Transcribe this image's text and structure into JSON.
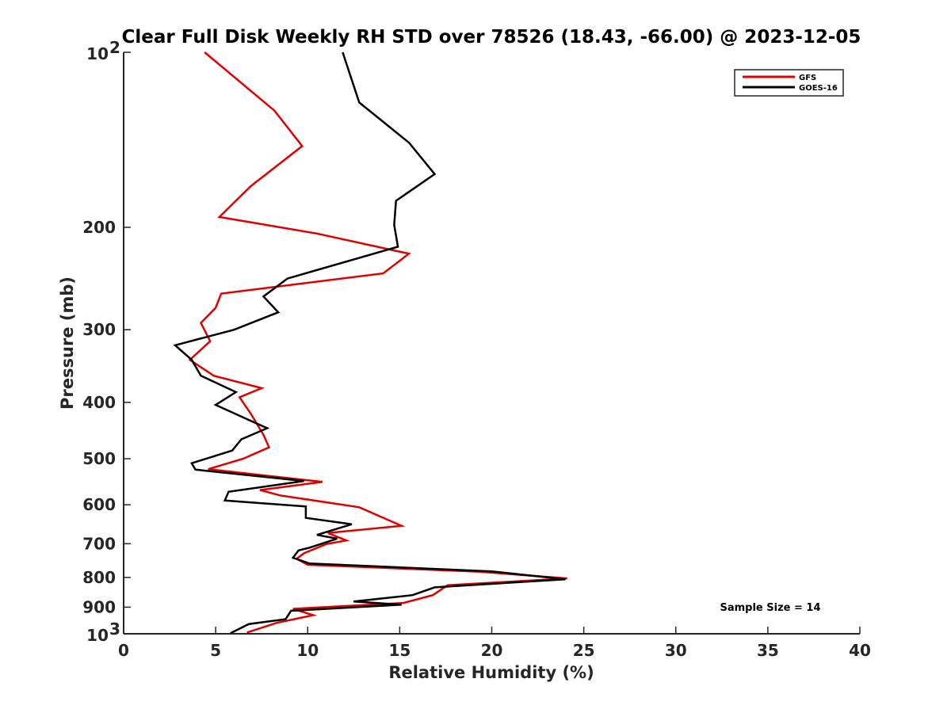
{
  "chart_data": {
    "type": "line",
    "title": "Clear Full Disk Weekly RH STD over 78526 (18.43, -66.00) @ 2023-12-05",
    "xlabel": "Relative Humidity (%)",
    "ylabel": "Pressure (mb)",
    "xlim": [
      0,
      40
    ],
    "ylim": [
      100,
      1000
    ],
    "y_scale": "log",
    "y_reversed": true,
    "x_ticks": [
      "0",
      "5",
      "10",
      "15",
      "20",
      "25",
      "30",
      "35",
      "40"
    ],
    "y_ticks": [
      {
        "value": 100,
        "base": "10",
        "exp": "2"
      },
      {
        "value": 200,
        "label": "200"
      },
      {
        "value": 300,
        "label": "300"
      },
      {
        "value": 400,
        "label": "400"
      },
      {
        "value": 500,
        "label": "500"
      },
      {
        "value": 600,
        "label": "600"
      },
      {
        "value": 700,
        "label": "700"
      },
      {
        "value": 800,
        "label": "800"
      },
      {
        "value": 900,
        "label": "900"
      },
      {
        "value": 1000,
        "base": "10",
        "exp": "3"
      }
    ],
    "legend_position": "top-right",
    "annotation": "Sample Size = 14",
    "series": [
      {
        "name": "GFS",
        "color": "#e00000",
        "points": [
          [
            4.4,
            100
          ],
          [
            8.2,
            126
          ],
          [
            9.7,
            145
          ],
          [
            6.9,
            170
          ],
          [
            5.2,
            192
          ],
          [
            10.5,
            205
          ],
          [
            15.5,
            222
          ],
          [
            14.1,
            240
          ],
          [
            5.3,
            260
          ],
          [
            5.0,
            275
          ],
          [
            4.2,
            292
          ],
          [
            4.7,
            314
          ],
          [
            3.6,
            338
          ],
          [
            4.9,
            360
          ],
          [
            7.5,
            378
          ],
          [
            6.3,
            392
          ],
          [
            6.9,
            418
          ],
          [
            7.6,
            455
          ],
          [
            7.9,
            478
          ],
          [
            6.5,
            500
          ],
          [
            4.6,
            521
          ],
          [
            10.8,
            548
          ],
          [
            7.4,
            566
          ],
          [
            8.5,
            578
          ],
          [
            12.8,
            606
          ],
          [
            15.1,
            652
          ],
          [
            11.1,
            671
          ],
          [
            12.1,
            691
          ],
          [
            11.0,
            701
          ],
          [
            9.8,
            727
          ],
          [
            9.4,
            743
          ],
          [
            10.0,
            761
          ],
          [
            19.3,
            782
          ],
          [
            24.1,
            803
          ],
          [
            17.6,
            825
          ],
          [
            16.8,
            858
          ],
          [
            15.2,
            885
          ],
          [
            9.2,
            906
          ],
          [
            10.3,
            929
          ],
          [
            8.3,
            958
          ],
          [
            6.7,
            995
          ]
        ]
      },
      {
        "name": "GOES-16",
        "color": "#000000",
        "points": [
          [
            11.9,
            100
          ],
          [
            12.8,
            122
          ],
          [
            15.5,
            143
          ],
          [
            16.9,
            162
          ],
          [
            14.8,
            180
          ],
          [
            14.7,
            198
          ],
          [
            14.9,
            216
          ],
          [
            8.9,
            245
          ],
          [
            7.6,
            263
          ],
          [
            8.4,
            280
          ],
          [
            6.0,
            300
          ],
          [
            2.8,
            319
          ],
          [
            3.7,
            338
          ],
          [
            4.2,
            360
          ],
          [
            6.1,
            384
          ],
          [
            5.0,
            404
          ],
          [
            6.6,
            426
          ],
          [
            7.8,
            443
          ],
          [
            6.4,
            463
          ],
          [
            5.9,
            484
          ],
          [
            3.7,
            509
          ],
          [
            3.9,
            522
          ],
          [
            9.8,
            546
          ],
          [
            5.7,
            570
          ],
          [
            5.5,
            590
          ],
          [
            9.9,
            604
          ],
          [
            9.9,
            632
          ],
          [
            12.4,
            648
          ],
          [
            10.5,
            676
          ],
          [
            11.6,
            686
          ],
          [
            10.1,
            711
          ],
          [
            9.5,
            719
          ],
          [
            9.2,
            740
          ],
          [
            10.1,
            757
          ],
          [
            20.0,
            781
          ],
          [
            24.0,
            806
          ],
          [
            16.9,
            832
          ],
          [
            15.7,
            858
          ],
          [
            12.5,
            880
          ],
          [
            15.1,
            891
          ],
          [
            9.1,
            913
          ],
          [
            8.8,
            944
          ],
          [
            6.8,
            962
          ],
          [
            5.8,
            998
          ]
        ]
      }
    ]
  }
}
